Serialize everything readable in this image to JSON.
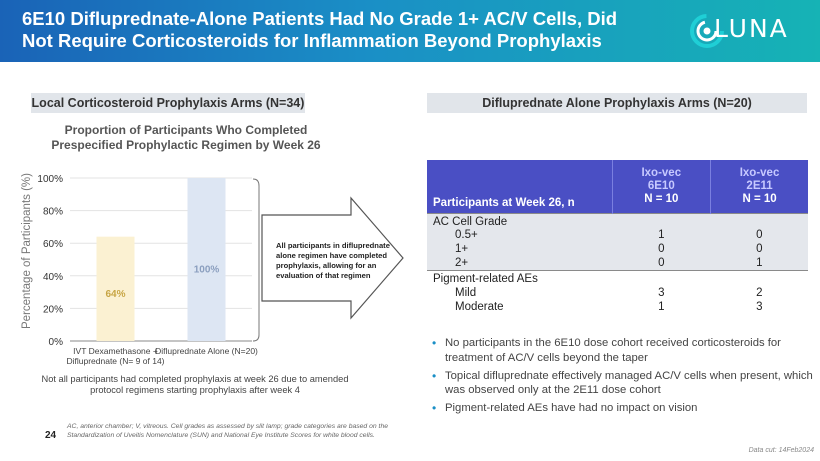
{
  "header": {
    "title": "6E10 Difluprednate-Alone Patients Had No Grade 1+ AC/V Cells, Did Not Require Corticosteroids for Inflammation Beyond Prophylaxis",
    "logo_text": "LUNA",
    "background_color": "#1a63b7",
    "accent_color": "#16b3b5"
  },
  "left_panel": {
    "section_title": "Local Corticosteroid Prophylaxis Arms (N=34)",
    "chart_note": "Not all participants had completed prophylaxis at week 26 due to amended protocol regimens starting prophylaxis after week 4",
    "arrow_callout": "All participants in difluprednate alone regimen have completed prophylaxis, allowing for an evaluation of that regimen"
  },
  "chart_data": {
    "type": "bar",
    "title": "Proportion of Participants Who Completed Prespecified Prophylactic Regimen by Week 26",
    "ylabel": "Percentage of Participants (%)",
    "xlabel": "",
    "ylim": [
      0,
      100
    ],
    "yticks": [
      "0%",
      "20%",
      "40%",
      "60%",
      "80%",
      "100%"
    ],
    "categories": [
      "IVT Dexamethasone + Difluprednate (N= 9 of 14)",
      "Difluprednate Alone (N=20)"
    ],
    "values": [
      64,
      100
    ],
    "value_labels": [
      "64%",
      "100%"
    ],
    "bar_colors": [
      "#fbf1d2",
      "#dde6f3"
    ],
    "label_colors": [
      "#c7a544",
      "#8b9fbf"
    ]
  },
  "right_panel": {
    "section_title": "Difluprednate Alone Prophylaxis Arms (N=20)",
    "table": {
      "param_header": "Participants at Week 26, n",
      "columns": [
        {
          "name": "Ixo-vec",
          "dose": "6E10",
          "n": "N = 10"
        },
        {
          "name": "Ixo-vec",
          "dose": "2E11",
          "n": "N = 10"
        }
      ],
      "groups": [
        {
          "label": "AC Cell Grade",
          "rows": [
            {
              "label": "0.5+",
              "values": [
                "1",
                "0"
              ]
            },
            {
              "label": "1+",
              "values": [
                "0",
                "0"
              ]
            },
            {
              "label": "2+",
              "values": [
                "0",
                "1"
              ]
            }
          ]
        },
        {
          "label": "Pigment-related AEs",
          "rows": [
            {
              "label": "Mild",
              "values": [
                "3",
                "2"
              ]
            },
            {
              "label": "Moderate",
              "values": [
                "1",
                "3"
              ]
            }
          ]
        }
      ]
    },
    "bullets": [
      "No participants in the 6E10 dose cohort received corticosteroids for treatment of AC/V cells beyond the taper",
      "Topical difluprednate effectively managed AC/V cells when present, which was observed only at the 2E11 dose cohort",
      "Pigment-related AEs have had no impact on vision"
    ]
  },
  "footer": {
    "page_number": "24",
    "footnote": "AC, anterior chamber; V, vitreous. Cell grades as assessed by slit lamp; grade categories are based on the Standardization of Uveitis Nomenclature (SUN) and National Eye Institute Scores for white blood cells.",
    "data_cut": "Data cut: 14Feb2024"
  }
}
